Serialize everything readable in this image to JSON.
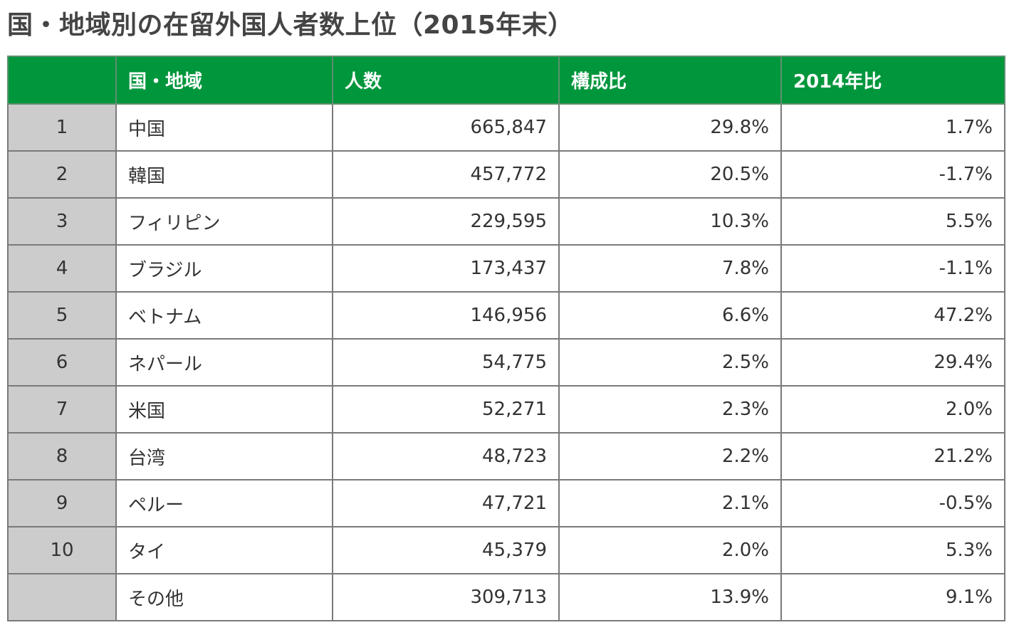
{
  "title": "国・地域別の在留外国人者数上位（2015年末）",
  "table": {
    "headers": [
      "",
      "国・地域",
      "人数",
      "構成比",
      "2014年比"
    ],
    "rows": [
      {
        "rank": "1",
        "name": "中国",
        "count": "665,847",
        "share": "29.8%",
        "change": "1.7%"
      },
      {
        "rank": "2",
        "name": "韓国",
        "count": "457,772",
        "share": "20.5%",
        "change": "-1.7%"
      },
      {
        "rank": "3",
        "name": "フィリピン",
        "count": "229,595",
        "share": "10.3%",
        "change": "5.5%"
      },
      {
        "rank": "4",
        "name": "ブラジル",
        "count": "173,437",
        "share": "7.8%",
        "change": "-1.1%"
      },
      {
        "rank": "5",
        "name": "ベトナム",
        "count": "146,956",
        "share": "6.6%",
        "change": "47.2%"
      },
      {
        "rank": "6",
        "name": "ネパール",
        "count": "54,775",
        "share": "2.5%",
        "change": "29.4%"
      },
      {
        "rank": "7",
        "name": "米国",
        "count": "52,271",
        "share": "2.3%",
        "change": "2.0%"
      },
      {
        "rank": "8",
        "name": "台湾",
        "count": "48,723",
        "share": "2.2%",
        "change": "21.2%"
      },
      {
        "rank": "9",
        "name": "ペルー",
        "count": "47,721",
        "share": "2.1%",
        "change": "-0.5%"
      },
      {
        "rank": "10",
        "name": "タイ",
        "count": "45,379",
        "share": "2.0%",
        "change": "5.3%"
      },
      {
        "rank": "",
        "name": "その他",
        "count": "309,713",
        "share": "13.9%",
        "change": "9.1%"
      }
    ]
  },
  "colors": {
    "header_bg": "#00963c",
    "header_text": "#ffffff",
    "rank_bg": "#cccccc",
    "border": "#7a7a7a",
    "title_text": "#444444"
  }
}
